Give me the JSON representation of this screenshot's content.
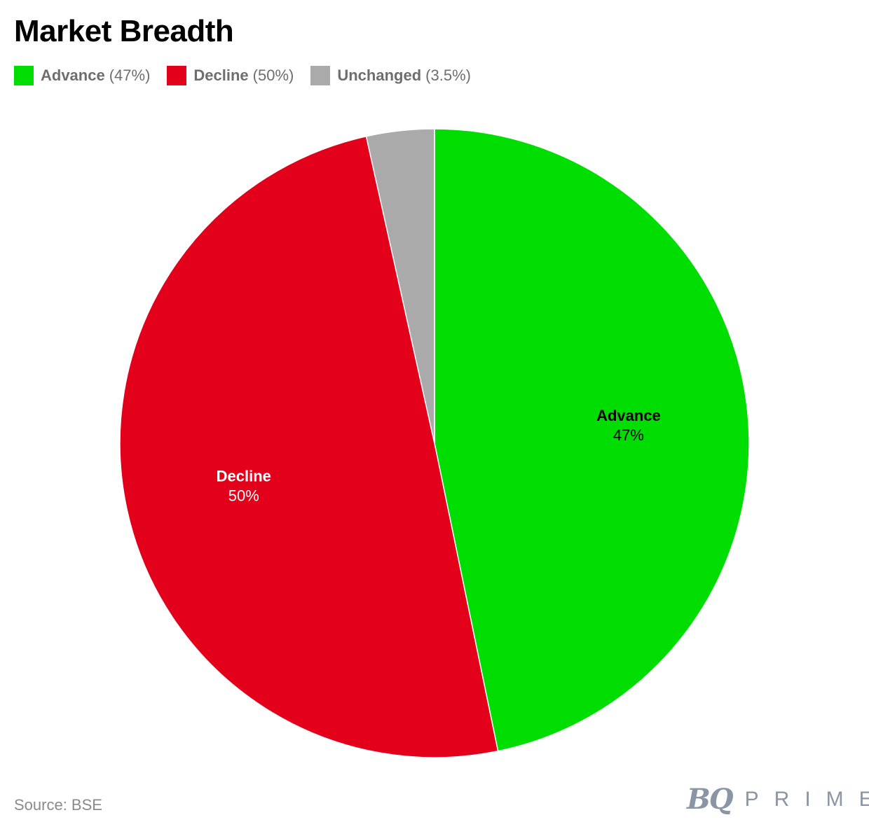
{
  "chart_data": {
    "type": "pie",
    "title": "Market Breadth",
    "slices": [
      {
        "name": "Advance",
        "value": 47,
        "label": "47%",
        "legend_pct": "(47%)",
        "color": "#00dd00",
        "label_color": "#000000"
      },
      {
        "name": "Decline",
        "value": 50,
        "label": "50%",
        "legend_pct": "(50%)",
        "color": "#e3001b",
        "label_color": "#ffffff"
      },
      {
        "name": "Unchanged",
        "value": 3.5,
        "label": "",
        "legend_pct": "(3.5%)",
        "color": "#aaaaaa",
        "label_color": "#000000"
      }
    ],
    "legend_position": "top-left"
  },
  "footer": {
    "source": "Source: BSE",
    "logo_mark": "BQ",
    "logo_word": "PRIME"
  }
}
